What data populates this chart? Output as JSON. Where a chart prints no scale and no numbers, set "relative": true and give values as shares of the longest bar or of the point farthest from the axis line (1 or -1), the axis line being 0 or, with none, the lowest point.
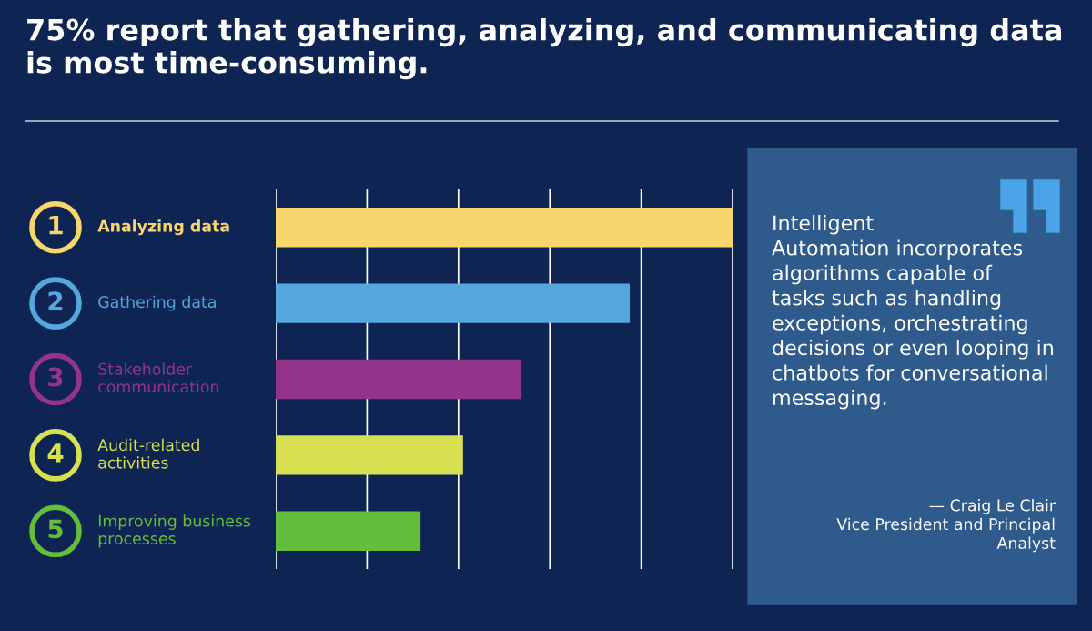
{
  "chart_data": {
    "type": "bar",
    "orientation": "horizontal",
    "relative": true,
    "grid": "x",
    "title": "75% report that gathering, analyzing, and communicating data is most time-consuming.",
    "categories": [
      "Analyzing data",
      "Gathering data",
      "Stakeholder\ncommunication",
      "Audit-related\nactivities",
      "Improving business\nprocesses"
    ],
    "values": [
      1,
      0.775,
      0.538,
      0.41,
      0.317
    ],
    "colors": [
      "#f9d56e",
      "#55a7de",
      "#92348a",
      "#d7e052",
      "#64bd3b"
    ],
    "annotations": [
      "1",
      "2",
      "3",
      "4",
      "5",
      "Intelligent\nAutomation incorporates\nalgorithms capable of\ntasks such as handling\nexceptions, orchestrating\ndecisions or even looping in\nchatbots for conversational\nmessaging.",
      "— Craig Le Clair\nVice President and Principal\nAnalyst"
    ]
  }
}
